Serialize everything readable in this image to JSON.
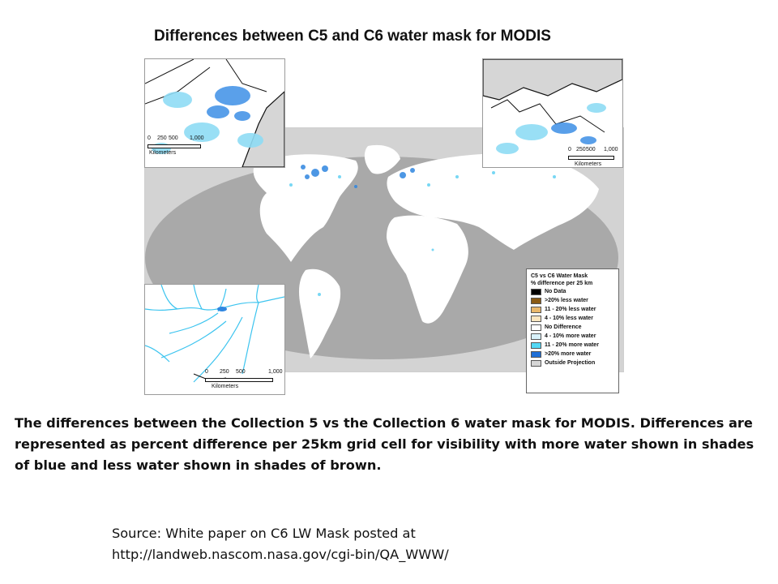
{
  "title": "Differences between C5 and C6 water mask for MODIS",
  "scalebars": {
    "top_left": {
      "ticks": [
        "0",
        "250",
        "500",
        "1,000"
      ],
      "unit": "Kilometers"
    },
    "top_right": {
      "ticks": [
        "0",
        "250",
        "500",
        "1,000"
      ],
      "unit": "Kilometers"
    },
    "bottom_left": {
      "ticks": [
        "0",
        "250",
        "500",
        "1,000"
      ],
      "unit": "Kilometers"
    }
  },
  "legend": {
    "title": "C5 vs C6 Water Mask",
    "subtitle": "% difference per 25 km",
    "items": [
      {
        "label": "No Data",
        "color": "#000000"
      },
      {
        "label": ">20% less water",
        "color": "#8a5a14"
      },
      {
        "label": "11 - 20% less water",
        "color": "#e9b76b"
      },
      {
        "label": "4 - 10% less water",
        "color": "#fbe6c0"
      },
      {
        "label": "No Difference",
        "color": "#ffffff"
      },
      {
        "label": "4 - 10% more water",
        "color": "#d9f2fb"
      },
      {
        "label": "11 - 20% more water",
        "color": "#53d8f5"
      },
      {
        "label": ">20% more water",
        "color": "#1f6fd6"
      },
      {
        "label": "Outside Projection",
        "color": "#d6d6d6"
      }
    ]
  },
  "caption": "The differences between the Collection 5 vs the Collection 6 water mask for MODIS. Differences are represented as percent difference per 25km grid cell for visibility with more water shown in shades of blue and less water shown in shades of brown.",
  "source": {
    "line1": "Source: White paper on C6 LW Mask posted at",
    "line2": "http://landweb.nascom.nasa.gov/cgi-bin/QA_WWW/"
  }
}
